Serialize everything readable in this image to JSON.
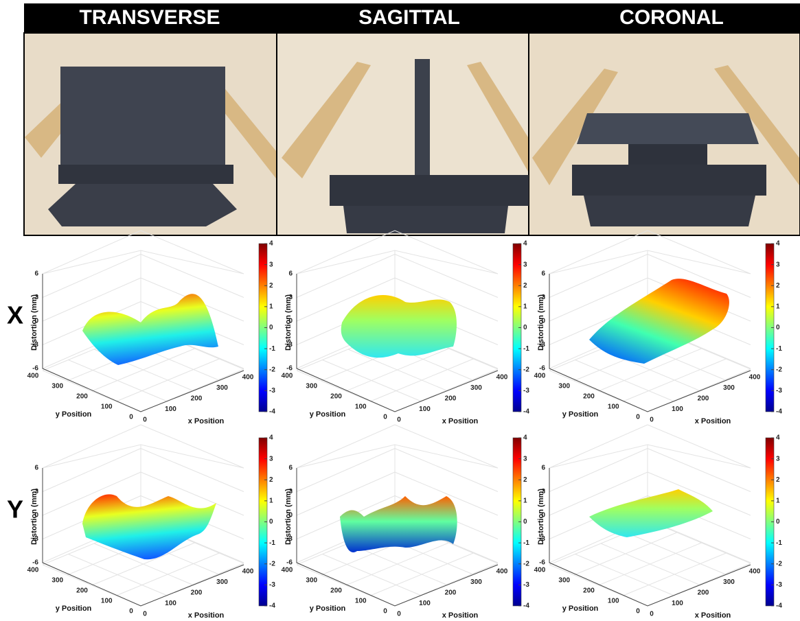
{
  "columns": [
    "TRANSVERSE",
    "SAGITTAL",
    "CORONAL"
  ],
  "rows": [
    "X",
    "Y"
  ],
  "plot": {
    "zlabel": "Distortion (mm)",
    "xlabel": "x Position",
    "ylabel": "y Position",
    "zticks": [
      -6,
      -3,
      0,
      3,
      6
    ],
    "xticks": [
      0,
      100,
      200,
      300,
      400
    ],
    "yticks": [
      0,
      100,
      200,
      300,
      400
    ],
    "colorbar_ticks": [
      -4,
      -3,
      -2,
      -1,
      0,
      1,
      2,
      3,
      4
    ]
  }
}
